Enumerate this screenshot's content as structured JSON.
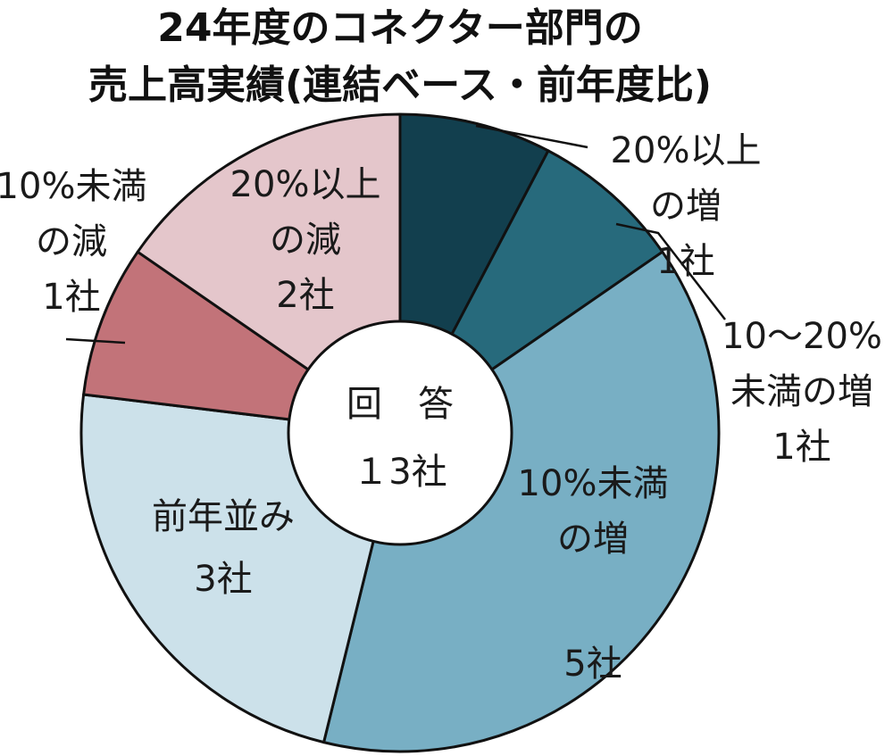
{
  "chart_data": {
    "type": "pie",
    "title_line1": "24年度のコネクター部門の",
    "title_line2": "売上高実績(連結ベース・前年度比)",
    "center_label_line1": "回　答",
    "center_label_line2": "１3社",
    "total": 13,
    "unit": "社",
    "slices": [
      {
        "label_line1": "20%以上",
        "label_line2": "の増",
        "count_label": "1社",
        "value": 1,
        "color": "#123f4e"
      },
      {
        "label_line1": "10～20%",
        "label_line2": "未満の増",
        "count_label": "1社",
        "value": 1,
        "color": "#276a7c"
      },
      {
        "label_line1": "10%未満",
        "label_line2": "の増",
        "count_label": "5社",
        "value": 5,
        "color": "#78afc4"
      },
      {
        "label_line1": "前年並み",
        "label_line2": "",
        "count_label": "3社",
        "value": 3,
        "color": "#cce1ea"
      },
      {
        "label_line1": "10%未満",
        "label_line2": "の減",
        "count_label": "1社",
        "value": 1,
        "color": "#c27379"
      },
      {
        "label_line1": "20%以上",
        "label_line2": "の減",
        "count_label": "2社",
        "value": 2,
        "color": "#e4c6cb"
      }
    ]
  }
}
